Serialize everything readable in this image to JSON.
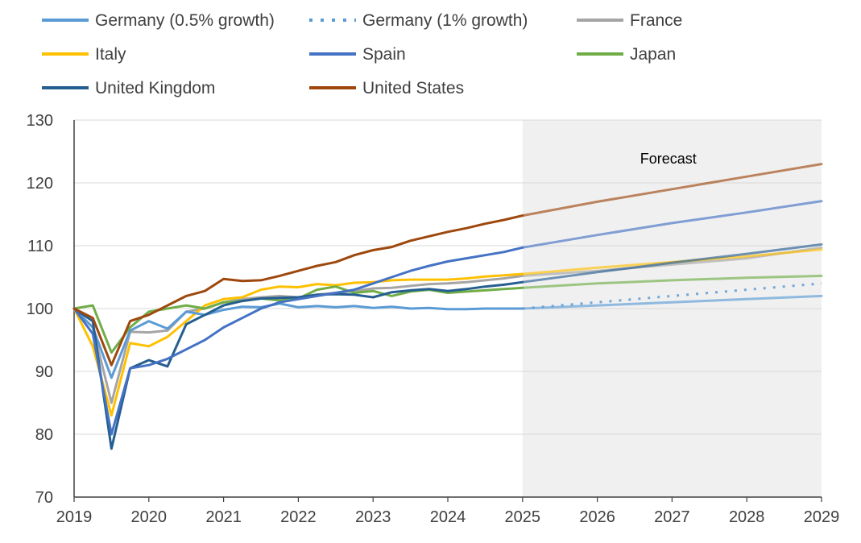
{
  "chart_data": {
    "type": "line",
    "title": "",
    "xlabel": "",
    "ylabel": "",
    "xlim": [
      2019,
      2029
    ],
    "ylim": [
      70,
      130
    ],
    "x_ticks": [
      2019,
      2020,
      2021,
      2022,
      2023,
      2024,
      2025,
      2026,
      2027,
      2028,
      2029
    ],
    "y_ticks": [
      70,
      80,
      90,
      100,
      110,
      120,
      130
    ],
    "grid": "horizontal",
    "legend_position": "top",
    "forecast_region": {
      "from": 2025,
      "to": 2029,
      "label": "Forecast",
      "color": "#f0f0f0"
    },
    "series": [
      {
        "name": "Germany (0.5% growth)",
        "color": "#5b9bd5",
        "style": "solid",
        "points": [
          [
            2019,
            100
          ],
          [
            2019.25,
            97
          ],
          [
            2019.5,
            89
          ],
          [
            2019.75,
            96.5
          ],
          [
            2020,
            98
          ],
          [
            2020.25,
            96.8
          ],
          [
            2020.5,
            99.5
          ],
          [
            2020.75,
            99
          ],
          [
            2021,
            99.8
          ],
          [
            2021.25,
            100.3
          ],
          [
            2021.5,
            100.2
          ],
          [
            2021.75,
            100.8
          ],
          [
            2022,
            100.2
          ],
          [
            2022.25,
            100.4
          ],
          [
            2022.5,
            100.2
          ],
          [
            2022.75,
            100.4
          ],
          [
            2023,
            100.1
          ],
          [
            2023.25,
            100.3
          ],
          [
            2023.5,
            100
          ],
          [
            2023.75,
            100.1
          ],
          [
            2024,
            99.9
          ],
          [
            2024.25,
            99.9
          ],
          [
            2024.5,
            100
          ],
          [
            2024.75,
            100
          ],
          [
            2025,
            100
          ]
        ],
        "forecast": [
          [
            2025,
            100
          ],
          [
            2026,
            100.5
          ],
          [
            2027,
            101
          ],
          [
            2028,
            101.5
          ],
          [
            2029,
            102
          ]
        ]
      },
      {
        "name": "Germany (1% growth)",
        "color": "#5b9bd5",
        "style": "dotted",
        "points": [],
        "forecast": [
          [
            2025,
            100
          ],
          [
            2026,
            101
          ],
          [
            2027,
            102
          ],
          [
            2028,
            103
          ],
          [
            2029,
            104
          ]
        ]
      },
      {
        "name": "France",
        "color": "#a5a5a5",
        "style": "solid",
        "points": [
          [
            2019,
            100
          ],
          [
            2019.25,
            97
          ],
          [
            2019.5,
            85
          ],
          [
            2019.75,
            96.3
          ],
          [
            2020,
            96.2
          ],
          [
            2020.25,
            96.5
          ],
          [
            2020.5,
            99.5
          ],
          [
            2020.75,
            100
          ],
          [
            2021,
            101
          ],
          [
            2021.25,
            101.5
          ],
          [
            2021.5,
            101.8
          ],
          [
            2021.75,
            102
          ],
          [
            2022,
            101.8
          ],
          [
            2022.25,
            102.2
          ],
          [
            2022.5,
            102.5
          ],
          [
            2022.75,
            102.8
          ],
          [
            2023,
            103.2
          ],
          [
            2023.25,
            103.3
          ],
          [
            2023.5,
            103.6
          ],
          [
            2023.75,
            103.9
          ],
          [
            2024,
            104
          ],
          [
            2024.25,
            104.2
          ],
          [
            2024.5,
            104.5
          ],
          [
            2024.75,
            104.8
          ],
          [
            2025,
            105.2
          ]
        ],
        "forecast": [
          [
            2025,
            105.2
          ],
          [
            2026,
            106
          ],
          [
            2027,
            107
          ],
          [
            2028,
            108
          ],
          [
            2029,
            109.7
          ]
        ]
      },
      {
        "name": "Italy",
        "color": "#ffc000",
        "style": "solid",
        "points": [
          [
            2019,
            100
          ],
          [
            2019.25,
            94
          ],
          [
            2019.5,
            83
          ],
          [
            2019.75,
            94.5
          ],
          [
            2020,
            94
          ],
          [
            2020.25,
            95.5
          ],
          [
            2020.5,
            98
          ],
          [
            2020.75,
            100.5
          ],
          [
            2021,
            101.5
          ],
          [
            2021.25,
            101.8
          ],
          [
            2021.5,
            103
          ],
          [
            2021.75,
            103.5
          ],
          [
            2022,
            103.4
          ],
          [
            2022.25,
            103.9
          ],
          [
            2022.5,
            103.7
          ],
          [
            2022.75,
            104.1
          ],
          [
            2023,
            104.2
          ],
          [
            2023.25,
            104.5
          ],
          [
            2023.5,
            104.6
          ],
          [
            2023.75,
            104.6
          ],
          [
            2024,
            104.6
          ],
          [
            2024.25,
            104.8
          ],
          [
            2024.5,
            105.1
          ],
          [
            2024.75,
            105.3
          ],
          [
            2025,
            105.5
          ]
        ],
        "forecast": [
          [
            2025,
            105.5
          ],
          [
            2026,
            106.5
          ],
          [
            2027,
            107.4
          ],
          [
            2028,
            108.3
          ],
          [
            2029,
            109.4
          ]
        ]
      },
      {
        "name": "Spain",
        "color": "#4472c4",
        "style": "solid",
        "points": [
          [
            2019,
            100
          ],
          [
            2019.25,
            96
          ],
          [
            2019.5,
            80
          ],
          [
            2019.75,
            90.5
          ],
          [
            2020,
            91
          ],
          [
            2020.25,
            92
          ],
          [
            2020.5,
            93.5
          ],
          [
            2020.75,
            95
          ],
          [
            2021,
            97
          ],
          [
            2021.25,
            98.5
          ],
          [
            2021.5,
            100
          ],
          [
            2021.75,
            101
          ],
          [
            2022,
            101.5
          ],
          [
            2022.25,
            102
          ],
          [
            2022.5,
            102.5
          ],
          [
            2022.75,
            103
          ],
          [
            2023,
            104
          ],
          [
            2023.25,
            105
          ],
          [
            2023.5,
            106
          ],
          [
            2023.75,
            106.8
          ],
          [
            2024,
            107.5
          ],
          [
            2024.25,
            108
          ],
          [
            2024.5,
            108.5
          ],
          [
            2024.75,
            109
          ],
          [
            2025,
            109.7
          ]
        ],
        "forecast": [
          [
            2025,
            109.7
          ],
          [
            2026,
            111.7
          ],
          [
            2027,
            113.6
          ],
          [
            2028,
            115.3
          ],
          [
            2029,
            117.1
          ]
        ]
      },
      {
        "name": "Japan",
        "color": "#70ad47",
        "style": "solid",
        "points": [
          [
            2019,
            100
          ],
          [
            2019.25,
            100.5
          ],
          [
            2019.5,
            93
          ],
          [
            2019.75,
            97
          ],
          [
            2020,
            99.5
          ],
          [
            2020.25,
            100
          ],
          [
            2020.5,
            100.5
          ],
          [
            2020.75,
            100
          ],
          [
            2021,
            101
          ],
          [
            2021.25,
            101.2
          ],
          [
            2021.5,
            101.6
          ],
          [
            2021.75,
            101.3
          ],
          [
            2022,
            101.6
          ],
          [
            2022.25,
            103
          ],
          [
            2022.5,
            103.5
          ],
          [
            2022.75,
            102.5
          ],
          [
            2023,
            102.8
          ],
          [
            2023.25,
            102
          ],
          [
            2023.5,
            102.7
          ],
          [
            2023.75,
            103
          ],
          [
            2024,
            102.5
          ],
          [
            2024.25,
            102.7
          ],
          [
            2024.5,
            102.9
          ],
          [
            2024.75,
            103.1
          ],
          [
            2025,
            103.3
          ]
        ],
        "forecast": [
          [
            2025,
            103.3
          ],
          [
            2026,
            104
          ],
          [
            2027,
            104.5
          ],
          [
            2028,
            104.9
          ],
          [
            2029,
            105.2
          ]
        ]
      },
      {
        "name": "United Kingdom",
        "color": "#255e91",
        "style": "solid",
        "points": [
          [
            2019,
            100
          ],
          [
            2019.25,
            98
          ],
          [
            2019.5,
            77.7
          ],
          [
            2019.75,
            90.5
          ],
          [
            2020,
            91.8
          ],
          [
            2020.25,
            90.8
          ],
          [
            2020.5,
            97.5
          ],
          [
            2020.75,
            99
          ],
          [
            2021,
            100.5
          ],
          [
            2021.25,
            101.2
          ],
          [
            2021.5,
            101.6
          ],
          [
            2021.75,
            101.7
          ],
          [
            2022,
            101.8
          ],
          [
            2022.25,
            102.2
          ],
          [
            2022.5,
            102.3
          ],
          [
            2022.75,
            102.2
          ],
          [
            2023,
            101.8
          ],
          [
            2023.25,
            102.6
          ],
          [
            2023.5,
            102.9
          ],
          [
            2023.75,
            103.1
          ],
          [
            2024,
            102.8
          ],
          [
            2024.25,
            103.1
          ],
          [
            2024.5,
            103.5
          ],
          [
            2024.75,
            103.8
          ],
          [
            2025,
            104.2
          ]
        ],
        "forecast": [
          [
            2025,
            104.2
          ],
          [
            2026,
            105.8
          ],
          [
            2027,
            107.3
          ],
          [
            2028,
            108.7
          ],
          [
            2029,
            110.2
          ]
        ]
      },
      {
        "name": "United States",
        "color": "#9e480e",
        "style": "solid",
        "points": [
          [
            2019,
            100
          ],
          [
            2019.25,
            98.5
          ],
          [
            2019.5,
            91
          ],
          [
            2019.75,
            98
          ],
          [
            2020,
            99
          ],
          [
            2020.25,
            100.5
          ],
          [
            2020.5,
            102
          ],
          [
            2020.75,
            102.8
          ],
          [
            2021,
            104.7
          ],
          [
            2021.25,
            104.4
          ],
          [
            2021.5,
            104.5
          ],
          [
            2021.75,
            105.2
          ],
          [
            2022,
            106
          ],
          [
            2022.25,
            106.8
          ],
          [
            2022.5,
            107.4
          ],
          [
            2022.75,
            108.5
          ],
          [
            2023,
            109.3
          ],
          [
            2023.25,
            109.8
          ],
          [
            2023.5,
            110.8
          ],
          [
            2023.75,
            111.5
          ],
          [
            2024,
            112.2
          ],
          [
            2024.25,
            112.8
          ],
          [
            2024.5,
            113.5
          ],
          [
            2024.75,
            114.1
          ],
          [
            2025,
            114.8
          ]
        ],
        "forecast": [
          [
            2025,
            114.8
          ],
          [
            2026,
            117
          ],
          [
            2027,
            119
          ],
          [
            2028,
            121
          ],
          [
            2029,
            123
          ]
        ]
      }
    ]
  }
}
